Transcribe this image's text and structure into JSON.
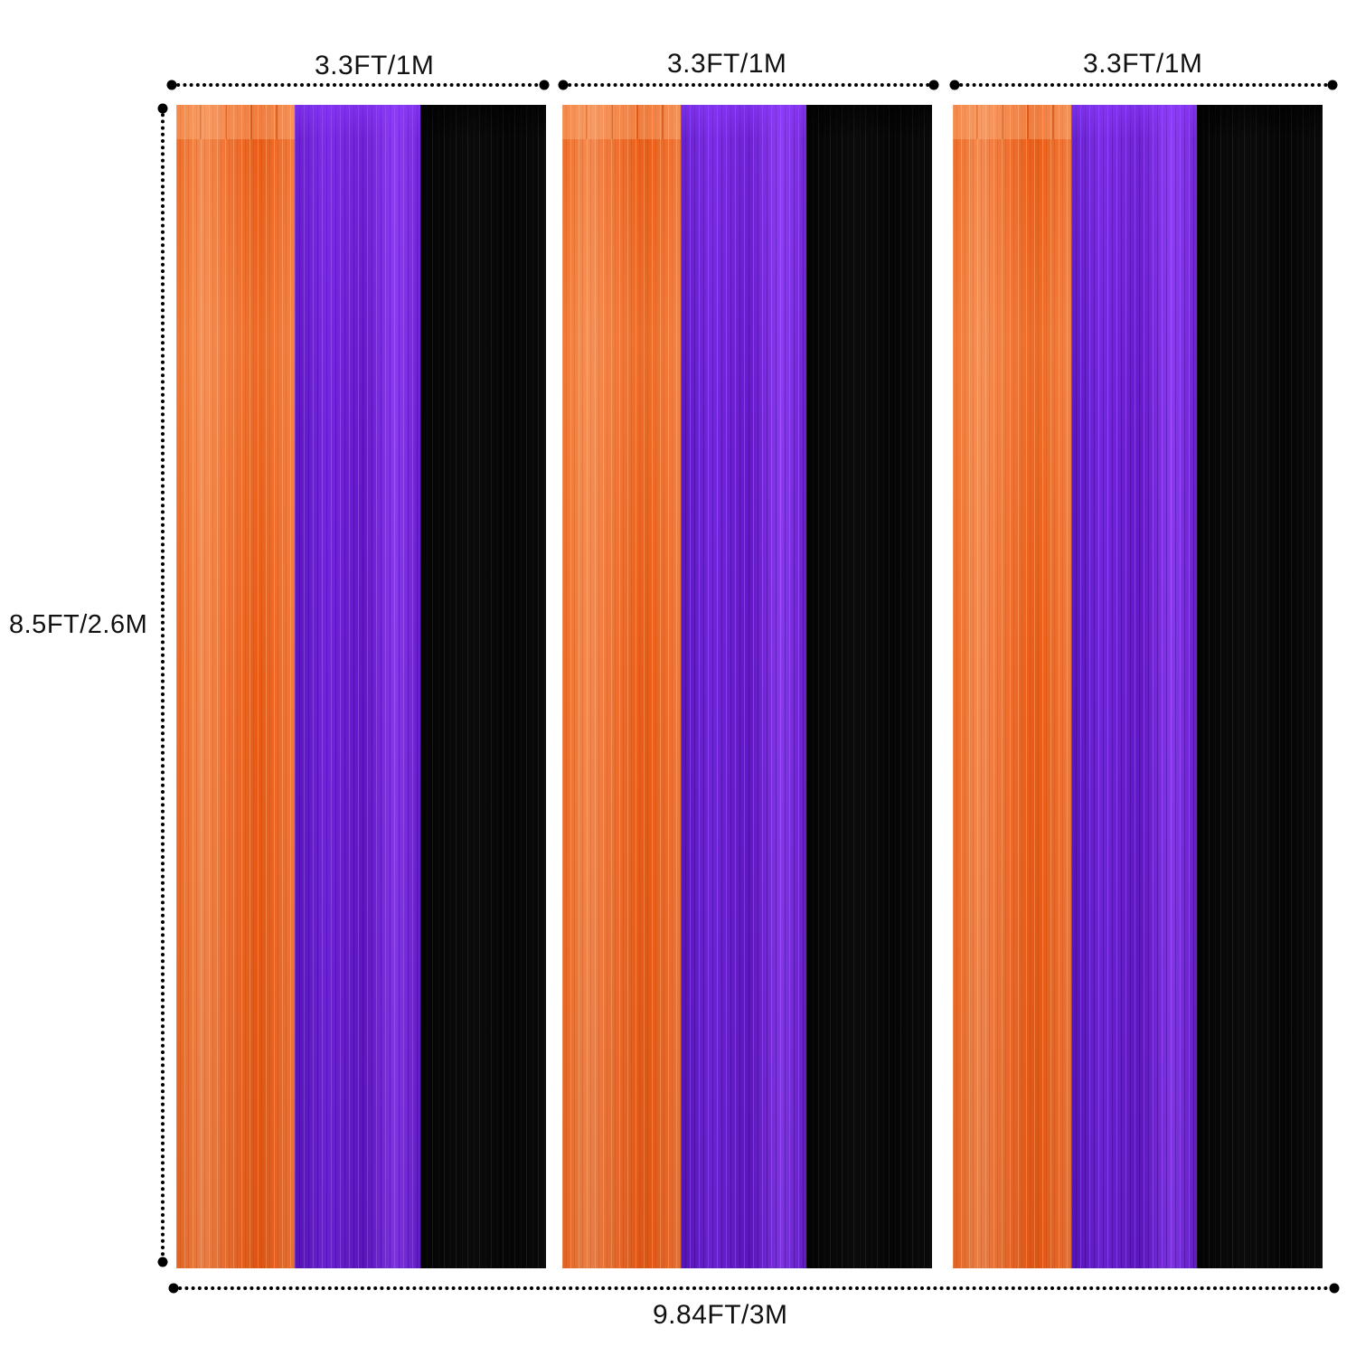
{
  "labels": {
    "panel_width_1": "3.3FT/1M",
    "panel_width_2": "3.3FT/1M",
    "panel_width_3": "3.3FT/1M",
    "height": "8.5FT/2.6M",
    "total_width": "9.84FT/3M"
  },
  "panels": [
    {
      "strips": [
        "orange",
        "purple",
        "black"
      ]
    },
    {
      "strips": [
        "orange",
        "purple",
        "black"
      ]
    },
    {
      "strips": [
        "orange",
        "purple",
        "black"
      ]
    }
  ],
  "colors": {
    "orange": "#f06a1e",
    "purple": "#6a1fd0",
    "black": "#050505",
    "dots": "#000000",
    "background": "#ffffff"
  }
}
